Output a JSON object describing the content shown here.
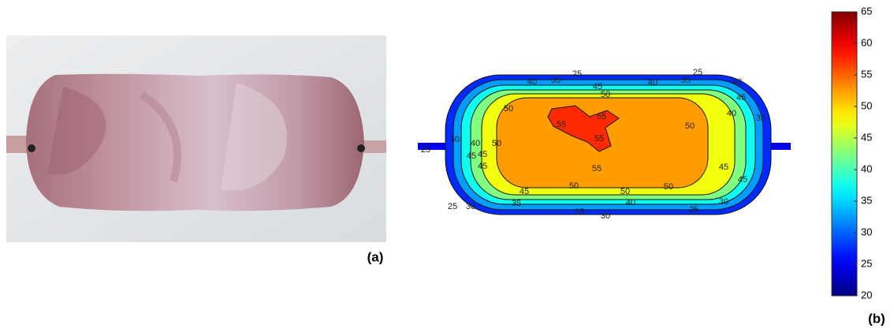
{
  "chart_data": {
    "type": "contour",
    "panel_labels": [
      "(a)",
      "(b)"
    ],
    "levels": [
      25,
      30,
      35,
      40,
      45,
      50,
      55
    ],
    "contour_labels": [
      25,
      40,
      35,
      45,
      40,
      50,
      25,
      35,
      40,
      45,
      50,
      55,
      55,
      55,
      50,
      50,
      40,
      45,
      45,
      45,
      50,
      45,
      35,
      30,
      55,
      50,
      45,
      50,
      40,
      25,
      30,
      25,
      30,
      25,
      25,
      30,
      45,
      40,
      35
    ],
    "colormap": "jet",
    "clim": [
      20,
      65
    ],
    "cticks": [
      20,
      25,
      30,
      35,
      40,
      45,
      50,
      55,
      60,
      65
    ]
  }
}
